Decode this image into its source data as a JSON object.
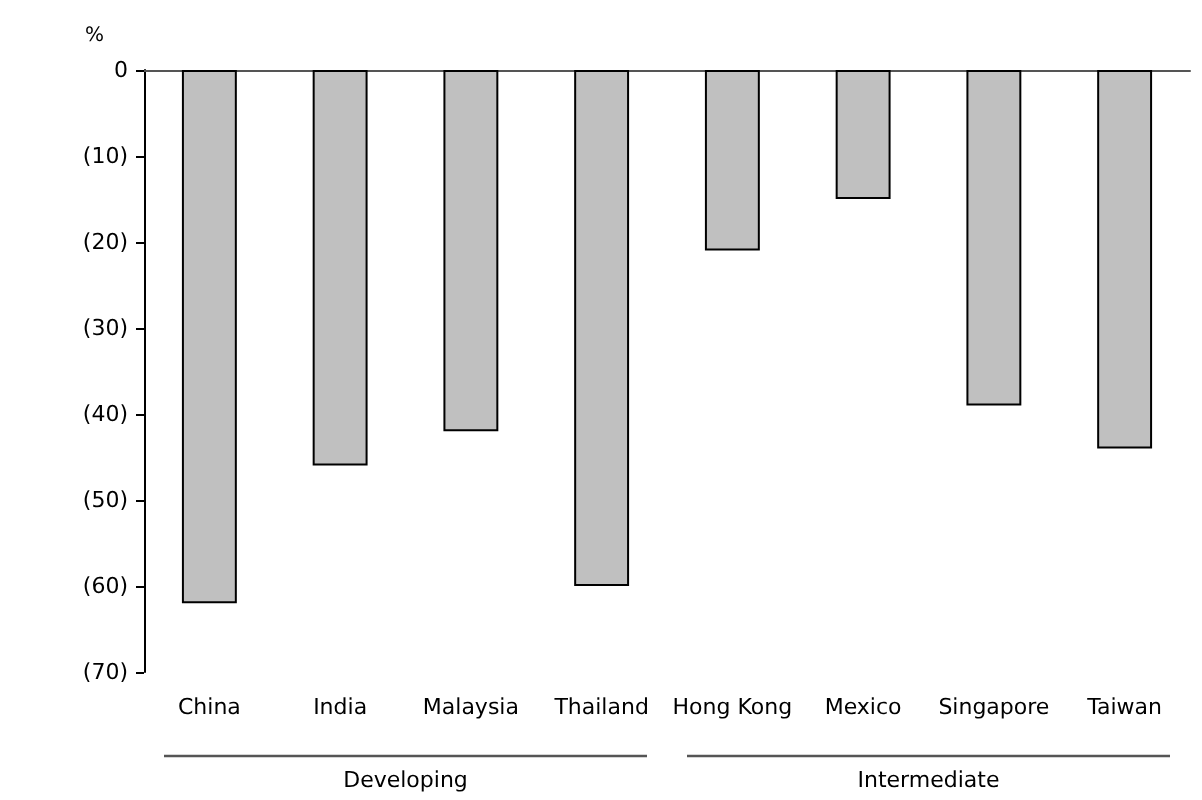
{
  "chart_data": {
    "type": "bar",
    "ylabel": "%",
    "categories": [
      "China",
      "India",
      "Malaysia",
      "Thailand",
      "Hong Kong",
      "Mexico",
      "Singapore",
      "Taiwan"
    ],
    "values": [
      -62,
      -46,
      -42,
      -60,
      -21,
      -15,
      -39,
      -44
    ],
    "color": "#c0c0c0",
    "ylim": [
      -70,
      0
    ],
    "yticks": [
      {
        "value": -70,
        "label": "(70)"
      },
      {
        "value": -60,
        "label": "(60)"
      },
      {
        "value": -50,
        "label": "(50)"
      },
      {
        "value": -40,
        "label": "(40)"
      },
      {
        "value": -30,
        "label": "(30)"
      },
      {
        "value": -20,
        "label": "(20)"
      },
      {
        "value": -10,
        "label": "(10)"
      },
      0
    ],
    "annotations": [
      "Developing",
      "Intermediate"
    ],
    "grid": false
  }
}
